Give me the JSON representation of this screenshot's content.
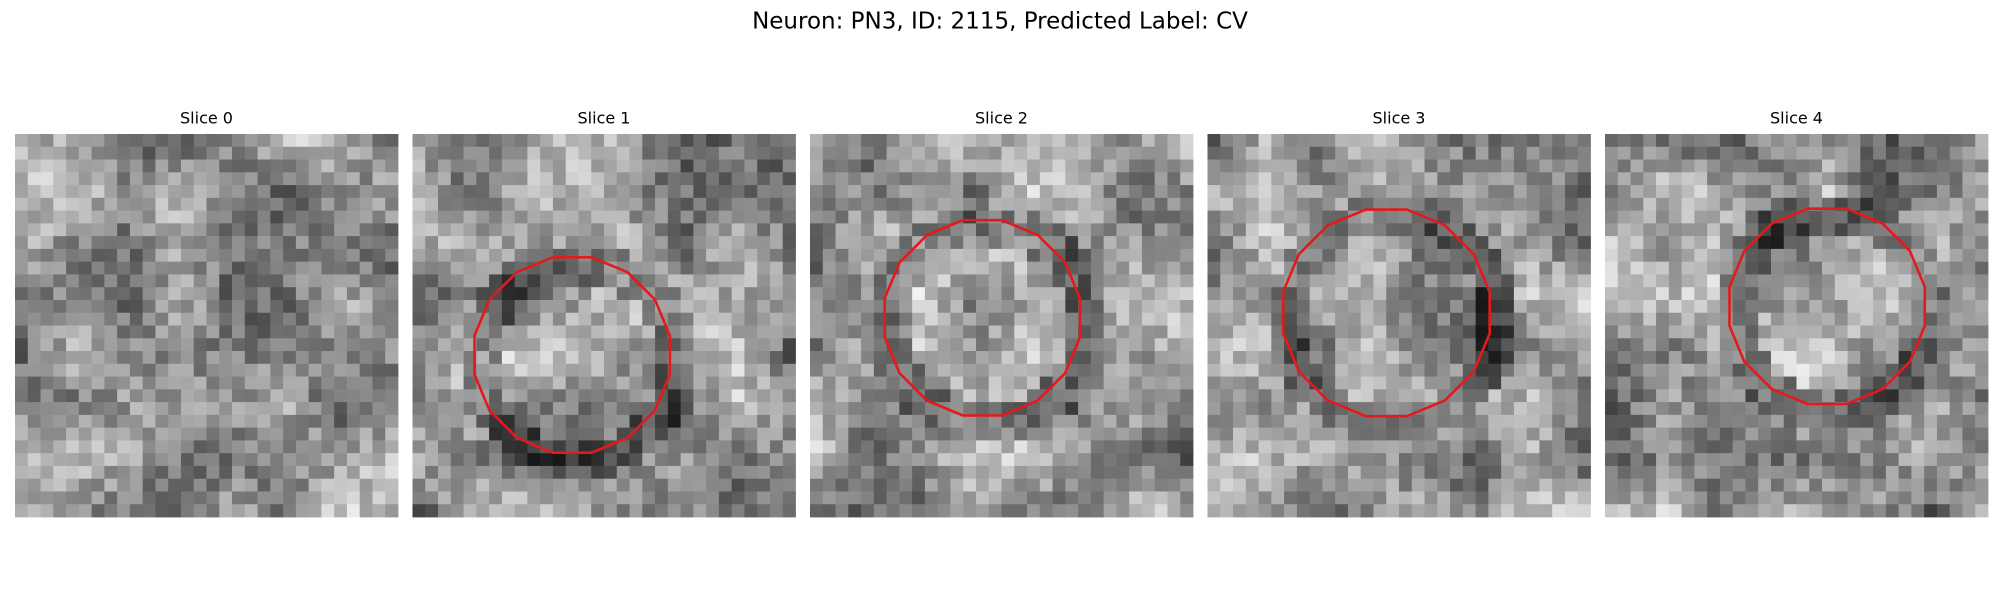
{
  "title": "Neuron: PN3, ID: 2115, Predicted Label: CV",
  "panels": [
    {
      "title": "Slice 0"
    },
    {
      "title": "Slice 1"
    },
    {
      "title": "Slice 2"
    },
    {
      "title": "Slice 3"
    },
    {
      "title": "Slice 4"
    }
  ]
}
